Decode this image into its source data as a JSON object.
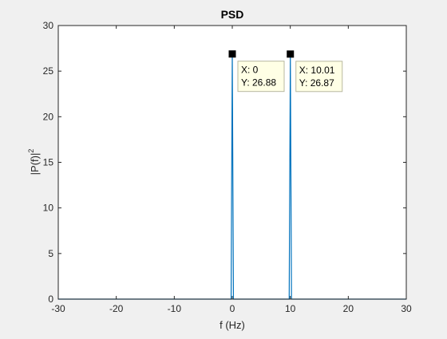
{
  "chart_data": {
    "type": "line",
    "title": "PSD",
    "xlabel": "f (Hz)",
    "ylabel_base": "|P(f)|",
    "ylabel_exp": "2",
    "xlim": [
      -30,
      30
    ],
    "ylim": [
      0,
      30
    ],
    "xticks": [
      -30,
      -20,
      -10,
      0,
      10,
      20,
      30
    ],
    "yticks": [
      0,
      5,
      10,
      15,
      20,
      25,
      30
    ],
    "grid": false,
    "series": [
      {
        "color": "#0072bd",
        "x": [
          -30,
          -0.2,
          0,
          0.2,
          9.81,
          10.01,
          10.21,
          30
        ],
        "y": [
          0,
          0,
          26.88,
          0,
          0,
          26.87,
          0,
          0
        ]
      }
    ],
    "datatips": [
      {
        "x": 0,
        "y": 26.88,
        "line1": "X: 0",
        "line2": "Y: 26.88"
      },
      {
        "x": 10.01,
        "y": 26.87,
        "line1": "X: 10.01",
        "line2": "Y: 26.87"
      }
    ]
  }
}
